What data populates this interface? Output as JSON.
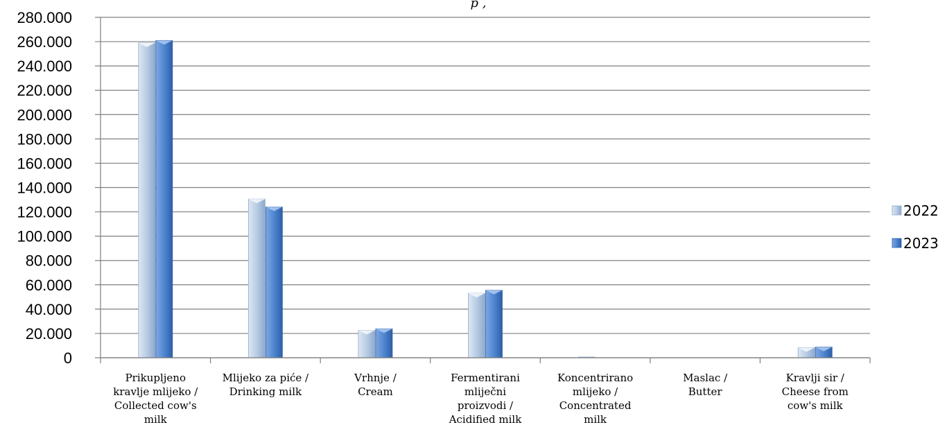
{
  "chart_data": {
    "type": "bar",
    "title": "",
    "title_fragment": "p      ,",
    "xlabel": "",
    "ylabel": "",
    "ylim": [
      0,
      280000
    ],
    "ytick_step": 20000,
    "yticks": [
      "0",
      "20.000",
      "40.000",
      "60.000",
      "80.000",
      "100.000",
      "120.000",
      "140.000",
      "160.000",
      "180.000",
      "200.000",
      "220.000",
      "240.000",
      "260.000",
      "280.000"
    ],
    "grid": true,
    "legend_position": "right",
    "categories": [
      [
        "Prikupljeno",
        "kravlje mlijeko /",
        "Collected cow's",
        "milk"
      ],
      [
        "Mlijeko za piće /",
        "Drinking milk"
      ],
      [
        "Vrhnje /",
        "Cream"
      ],
      [
        "Fermentirani",
        "mliječni",
        "proizvodi /",
        "Acidified milk"
      ],
      [
        "Koncentrirano",
        "mlijeko /",
        "Concentrated",
        "milk"
      ],
      [
        "Maslac /",
        "Butter"
      ],
      [
        "Kravlji sir /",
        "Cheese from",
        "cow's milk"
      ]
    ],
    "series": [
      {
        "name": "2022",
        "color": "#b8cce4",
        "values": [
          259000,
          130500,
          22500,
          53000,
          600,
          0,
          8300
        ]
      },
      {
        "name": "2023",
        "color": "#4f86d0",
        "values": [
          261000,
          124000,
          23800,
          55500,
          0,
          0,
          8800
        ]
      }
    ]
  }
}
